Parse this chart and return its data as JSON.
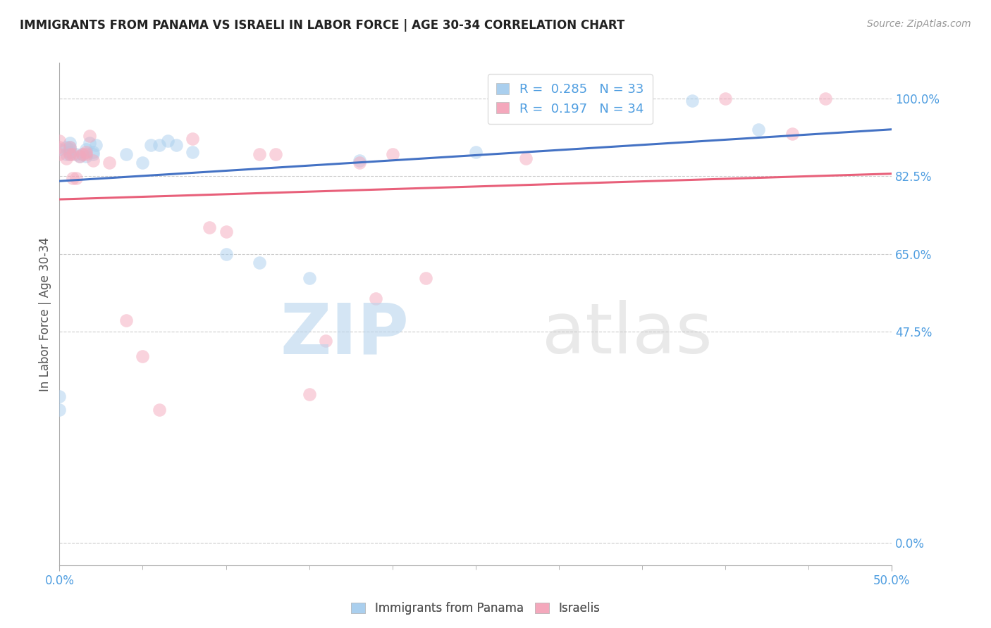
{
  "title": "IMMIGRANTS FROM PANAMA VS ISRAELI IN LABOR FORCE | AGE 30-34 CORRELATION CHART",
  "source_text": "Source: ZipAtlas.com",
  "ylabel": "In Labor Force | Age 30-34",
  "xlim": [
    0.0,
    0.5
  ],
  "ylim": [
    -0.05,
    1.08
  ],
  "yticks": [
    0.0,
    0.475,
    0.65,
    0.825,
    1.0
  ],
  "ytick_labels": [
    "0.0%",
    "47.5%",
    "65.0%",
    "82.5%",
    "100.0%"
  ],
  "xticks": [
    0.0,
    0.5
  ],
  "xtick_labels": [
    "0.0%",
    "50.0%"
  ],
  "panama_R": 0.285,
  "panama_N": 33,
  "israeli_R": 0.197,
  "israeli_N": 34,
  "panama_color": "#aacfee",
  "israeli_color": "#f4a8bc",
  "panama_line_color": "#4472c4",
  "israeli_line_color": "#e8607a",
  "tick_color": "#4e9de0",
  "grid_color": "#cccccc",
  "panama_points_x": [
    0.0,
    0.0,
    0.0,
    0.004,
    0.004,
    0.006,
    0.006,
    0.006,
    0.006,
    0.006,
    0.01,
    0.012,
    0.014,
    0.016,
    0.016,
    0.018,
    0.02,
    0.02,
    0.022,
    0.04,
    0.05,
    0.055,
    0.06,
    0.065,
    0.07,
    0.08,
    0.1,
    0.12,
    0.15,
    0.18,
    0.25,
    0.38,
    0.42
  ],
  "panama_points_y": [
    0.3,
    0.33,
    0.885,
    0.875,
    0.89,
    0.875,
    0.88,
    0.885,
    0.89,
    0.9,
    0.875,
    0.87,
    0.875,
    0.87,
    0.885,
    0.9,
    0.875,
    0.88,
    0.895,
    0.875,
    0.855,
    0.895,
    0.895,
    0.905,
    0.895,
    0.88,
    0.65,
    0.63,
    0.595,
    0.86,
    0.88,
    0.995,
    0.93
  ],
  "israeli_points_x": [
    0.0,
    0.0,
    0.0,
    0.004,
    0.006,
    0.006,
    0.008,
    0.008,
    0.01,
    0.012,
    0.014,
    0.016,
    0.016,
    0.018,
    0.02,
    0.03,
    0.04,
    0.05,
    0.06,
    0.08,
    0.09,
    0.1,
    0.12,
    0.13,
    0.15,
    0.16,
    0.18,
    0.19,
    0.2,
    0.22,
    0.28,
    0.4,
    0.44,
    0.46
  ],
  "israeli_points_y": [
    0.875,
    0.89,
    0.905,
    0.865,
    0.875,
    0.89,
    0.82,
    0.875,
    0.82,
    0.87,
    0.875,
    0.875,
    0.88,
    0.915,
    0.86,
    0.855,
    0.5,
    0.42,
    0.3,
    0.91,
    0.71,
    0.7,
    0.875,
    0.875,
    0.335,
    0.455,
    0.855,
    0.55,
    0.875,
    0.595,
    0.865,
    1.0,
    0.92,
    1.0
  ]
}
